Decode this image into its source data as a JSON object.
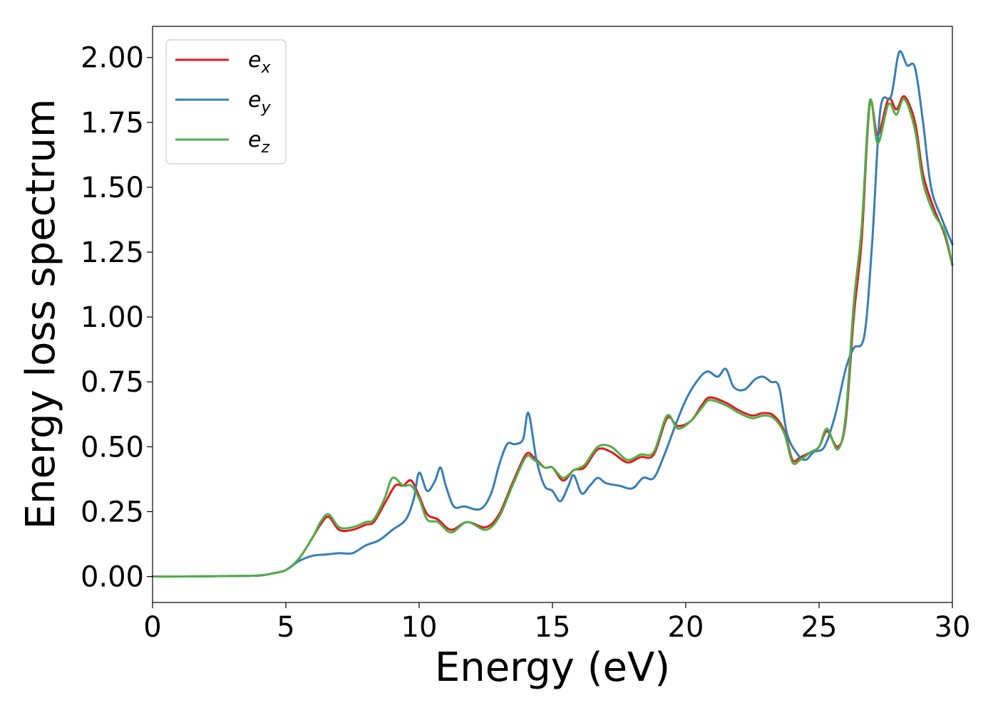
{
  "chart_data": {
    "type": "line",
    "xlabel": "Energy (eV)",
    "ylabel": "Energy loss spectrum",
    "xlim": [
      0,
      30
    ],
    "ylim": [
      -0.1,
      2.12
    ],
    "xticks": [
      0,
      5,
      10,
      15,
      20,
      25,
      30
    ],
    "xtick_labels": [
      "0",
      "5",
      "10",
      "15",
      "20",
      "25",
      "30"
    ],
    "yticks": [
      0.0,
      0.25,
      0.5,
      0.75,
      1.0,
      1.25,
      1.5,
      1.75,
      2.0
    ],
    "ytick_labels": [
      "0.00",
      "0.25",
      "0.50",
      "0.75",
      "1.00",
      "1.25",
      "1.50",
      "1.75",
      "2.00"
    ],
    "grid": false,
    "legend_position": "top-left",
    "series": [
      {
        "name": "e_x",
        "legend_base": "e",
        "legend_sub": "x",
        "color": "#e41a1c",
        "x": [
          0,
          1,
          2,
          3,
          4,
          4.5,
          5,
          5.5,
          6,
          6.3,
          6.6,
          7,
          7.5,
          8,
          8.3,
          8.7,
          9.1,
          9.4,
          9.7,
          10,
          10.3,
          10.7,
          11.2,
          11.8,
          12.5,
          13,
          13.5,
          14,
          14.3,
          14.7,
          15,
          15.4,
          15.8,
          16.2,
          16.7,
          17.2,
          17.8,
          18.3,
          18.8,
          19.3,
          19.7,
          20.2,
          20.6,
          20.9,
          21.5,
          22,
          22.5,
          22.9,
          23.3,
          23.7,
          24,
          24.3,
          24.7,
          25,
          25.3,
          25.7,
          26,
          26.3,
          26.6,
          26.9,
          27.2,
          27.6,
          27.9,
          28.2,
          28.6,
          28.9,
          29.3,
          29.7,
          30
        ],
        "y": [
          0,
          0,
          0.001,
          0.002,
          0.004,
          0.012,
          0.025,
          0.07,
          0.15,
          0.2,
          0.23,
          0.18,
          0.18,
          0.2,
          0.21,
          0.28,
          0.35,
          0.35,
          0.37,
          0.31,
          0.24,
          0.22,
          0.18,
          0.21,
          0.19,
          0.24,
          0.36,
          0.47,
          0.46,
          0.42,
          0.42,
          0.37,
          0.41,
          0.42,
          0.49,
          0.48,
          0.44,
          0.46,
          0.47,
          0.61,
          0.58,
          0.6,
          0.66,
          0.69,
          0.67,
          0.64,
          0.62,
          0.63,
          0.62,
          0.56,
          0.45,
          0.46,
          0.48,
          0.5,
          0.56,
          0.5,
          0.6,
          1.0,
          1.3,
          1.82,
          1.7,
          1.84,
          1.8,
          1.85,
          1.75,
          1.55,
          1.42,
          1.32,
          1.2
        ]
      },
      {
        "name": "e_y",
        "legend_base": "e",
        "legend_sub": "y",
        "color": "#377eb8",
        "x": [
          0,
          1,
          2,
          3,
          4,
          4.5,
          5,
          5.5,
          6,
          6.5,
          7,
          7.5,
          8,
          8.5,
          9,
          9.5,
          9.8,
          10,
          10.3,
          10.6,
          10.8,
          11,
          11.3,
          11.7,
          12.3,
          12.7,
          13,
          13.3,
          13.6,
          13.9,
          14.1,
          14.4,
          14.7,
          15,
          15.3,
          15.6,
          15.8,
          16.1,
          16.4,
          16.7,
          17,
          17.5,
          18,
          18.4,
          18.8,
          19.2,
          19.6,
          20,
          20.4,
          20.8,
          21.2,
          21.5,
          21.8,
          22.2,
          22.6,
          22.9,
          23.2,
          23.5,
          23.8,
          24.2,
          24.5,
          24.8,
          25.2,
          25.6,
          26,
          26.3,
          26.7,
          27,
          27.3,
          27.7,
          28,
          28.3,
          28.6,
          28.9,
          29.2,
          29.6,
          30
        ],
        "y": [
          0,
          0,
          0.001,
          0.002,
          0.004,
          0.012,
          0.025,
          0.06,
          0.08,
          0.085,
          0.09,
          0.09,
          0.12,
          0.14,
          0.18,
          0.22,
          0.3,
          0.4,
          0.33,
          0.37,
          0.42,
          0.35,
          0.27,
          0.27,
          0.26,
          0.32,
          0.43,
          0.51,
          0.51,
          0.53,
          0.63,
          0.45,
          0.35,
          0.33,
          0.29,
          0.35,
          0.39,
          0.32,
          0.35,
          0.38,
          0.36,
          0.35,
          0.34,
          0.38,
          0.38,
          0.47,
          0.58,
          0.68,
          0.75,
          0.79,
          0.77,
          0.8,
          0.73,
          0.72,
          0.76,
          0.77,
          0.75,
          0.73,
          0.55,
          0.47,
          0.45,
          0.48,
          0.5,
          0.62,
          0.8,
          0.88,
          0.93,
          1.3,
          1.8,
          1.85,
          2.02,
          1.97,
          1.96,
          1.75,
          1.5,
          1.38,
          1.28
        ]
      },
      {
        "name": "e_z",
        "legend_base": "e",
        "legend_sub": "z",
        "color": "#4daf4a",
        "x": [
          0,
          1,
          2,
          3,
          4,
          4.5,
          5,
          5.5,
          6,
          6.3,
          6.6,
          7,
          7.5,
          8,
          8.3,
          8.7,
          9,
          9.4,
          9.7,
          10,
          10.3,
          10.7,
          11.2,
          11.8,
          12.5,
          13,
          13.5,
          14,
          14.3,
          14.7,
          15,
          15.4,
          15.8,
          16.2,
          16.7,
          17.2,
          17.8,
          18.3,
          18.8,
          19.3,
          19.7,
          20.2,
          20.6,
          20.9,
          21.5,
          22,
          22.5,
          22.9,
          23.3,
          23.7,
          24,
          24.3,
          24.7,
          25,
          25.3,
          25.7,
          26,
          26.3,
          26.6,
          26.9,
          27.2,
          27.6,
          27.9,
          28.2,
          28.6,
          28.9,
          29.3,
          29.7,
          30
        ],
        "y": [
          0,
          0,
          0.001,
          0.002,
          0.004,
          0.012,
          0.025,
          0.07,
          0.15,
          0.21,
          0.24,
          0.19,
          0.19,
          0.21,
          0.22,
          0.3,
          0.38,
          0.35,
          0.35,
          0.3,
          0.22,
          0.21,
          0.17,
          0.21,
          0.18,
          0.23,
          0.35,
          0.46,
          0.45,
          0.42,
          0.42,
          0.38,
          0.41,
          0.43,
          0.5,
          0.5,
          0.45,
          0.47,
          0.48,
          0.62,
          0.57,
          0.6,
          0.65,
          0.68,
          0.66,
          0.63,
          0.61,
          0.62,
          0.61,
          0.55,
          0.44,
          0.45,
          0.48,
          0.5,
          0.57,
          0.49,
          0.62,
          1.05,
          1.35,
          1.83,
          1.67,
          1.82,
          1.78,
          1.84,
          1.72,
          1.52,
          1.4,
          1.33,
          1.2
        ]
      }
    ]
  }
}
